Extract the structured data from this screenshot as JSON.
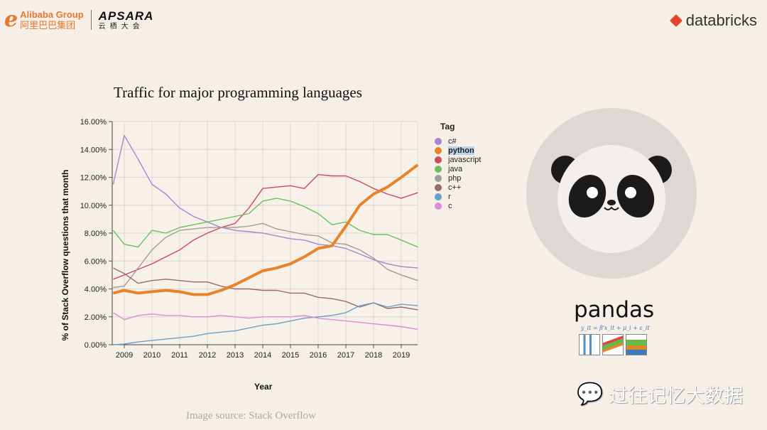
{
  "header": {
    "alibaba_brand": "Alibaba Group",
    "alibaba_cn": "阿里巴巴集团",
    "apsara": "APSARA",
    "apsara_cn": "云栖大会",
    "databricks": "databricks"
  },
  "right_panel": {
    "pandas_label": "pandas",
    "formula": "y_it = β'x_it + μ_i + ε_it"
  },
  "footer": {
    "source": "Image source: Stack Overflow",
    "watermark": "过往记忆大数据"
  },
  "chart_data": {
    "type": "line",
    "title": "Traffic for major programming languages",
    "xlabel": "Year",
    "ylabel": "% of Stack Overflow questions that month",
    "xlim": [
      2008.6,
      2019.6
    ],
    "ylim": [
      0,
      16
    ],
    "grid": true,
    "legend_title": "Tag",
    "legend_position": "right",
    "x_ticks": [
      "2009",
      "2010",
      "2011",
      "2012",
      "2013",
      "2014",
      "2015",
      "2016",
      "2017",
      "2018",
      "2019"
    ],
    "y_ticks": [
      "0.00%",
      "2.00%",
      "4.00%",
      "6.00%",
      "8.00%",
      "10.00%",
      "12.00%",
      "14.00%",
      "16.00%"
    ],
    "x": [
      2008.6,
      2009,
      2009.5,
      2010,
      2010.5,
      2011,
      2011.5,
      2012,
      2012.5,
      2013,
      2013.5,
      2014,
      2014.5,
      2015,
      2015.5,
      2016,
      2016.5,
      2017,
      2017.5,
      2018,
      2018.5,
      2019,
      2019.6
    ],
    "series": [
      {
        "name": "c#",
        "color": "#a985d0",
        "values": [
          11.5,
          15.0,
          13.3,
          11.5,
          10.8,
          9.8,
          9.2,
          8.8,
          8.4,
          8.2,
          8.1,
          8.0,
          7.8,
          7.6,
          7.5,
          7.2,
          7.1,
          6.9,
          6.5,
          6.1,
          5.8,
          5.6,
          5.5
        ]
      },
      {
        "name": "python",
        "color": "#e8832a",
        "highlighted": true,
        "values": [
          3.7,
          3.9,
          3.7,
          3.8,
          3.9,
          3.8,
          3.6,
          3.6,
          3.9,
          4.3,
          4.8,
          5.3,
          5.5,
          5.8,
          6.3,
          6.9,
          7.1,
          8.5,
          10.0,
          10.8,
          11.3,
          12.0,
          12.9
        ]
      },
      {
        "name": "javascript",
        "color": "#cc4a5e",
        "values": [
          4.7,
          5.0,
          5.4,
          5.8,
          6.3,
          6.8,
          7.5,
          8.0,
          8.4,
          8.7,
          9.8,
          11.2,
          11.3,
          11.4,
          11.2,
          12.2,
          12.1,
          12.1,
          11.7,
          11.2,
          10.8,
          10.5,
          10.9
        ]
      },
      {
        "name": "java",
        "color": "#6cbf5a",
        "values": [
          8.2,
          7.2,
          7.0,
          8.2,
          8.0,
          8.4,
          8.6,
          8.8,
          9.0,
          9.2,
          9.4,
          10.3,
          10.5,
          10.3,
          9.9,
          9.4,
          8.6,
          8.8,
          8.2,
          7.9,
          7.9,
          7.5,
          7.0
        ]
      },
      {
        "name": "php",
        "color": "#a09c9a",
        "values": [
          4.1,
          4.2,
          5.5,
          6.8,
          7.7,
          8.2,
          8.3,
          8.4,
          8.4,
          8.4,
          8.5,
          8.7,
          8.3,
          8.1,
          7.9,
          7.8,
          7.3,
          7.2,
          6.8,
          6.2,
          5.4,
          5.0,
          4.6
        ]
      },
      {
        "name": "c++",
        "color": "#9b6b66",
        "values": [
          5.5,
          5.1,
          4.4,
          4.6,
          4.7,
          4.6,
          4.5,
          4.5,
          4.2,
          4.0,
          4.0,
          3.9,
          3.9,
          3.7,
          3.7,
          3.4,
          3.3,
          3.1,
          2.7,
          3.0,
          2.6,
          2.7,
          2.5
        ]
      },
      {
        "name": "r",
        "color": "#6a9ecb",
        "values": [
          0.0,
          0.05,
          0.2,
          0.3,
          0.4,
          0.5,
          0.6,
          0.8,
          0.9,
          1.0,
          1.2,
          1.4,
          1.5,
          1.7,
          1.9,
          2.0,
          2.1,
          2.3,
          2.8,
          3.0,
          2.7,
          2.9,
          2.8
        ]
      },
      {
        "name": "c",
        "color": "#df8ad6",
        "values": [
          2.3,
          1.8,
          2.1,
          2.2,
          2.1,
          2.1,
          2.0,
          2.0,
          2.1,
          2.0,
          1.9,
          2.0,
          2.0,
          2.0,
          2.1,
          1.9,
          1.8,
          1.7,
          1.6,
          1.5,
          1.4,
          1.3,
          1.1
        ]
      }
    ]
  }
}
